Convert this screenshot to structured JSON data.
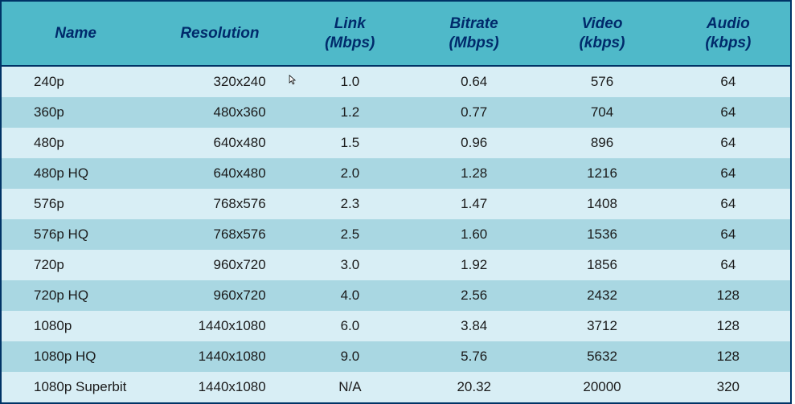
{
  "table": {
    "type": "table",
    "border_color": "#003366",
    "header_bg": "#4fb9c9",
    "header_text_color": "#002a6b",
    "row_bg_even": "#d8eef5",
    "row_bg_odd": "#a9d7e2",
    "body_text_color": "#1a1a1a",
    "header_fontsize": 19,
    "body_fontsize": 17,
    "columns": [
      {
        "label": "Name",
        "width": 185,
        "align": "left"
      },
      {
        "label": "Resolution",
        "width": 175,
        "align": "right"
      },
      {
        "label": "Link\n(Mbps)",
        "width": 150,
        "align": "center"
      },
      {
        "label": "Bitrate\n(Mbps)",
        "width": 160,
        "align": "center"
      },
      {
        "label": "Video\n(kbps)",
        "width": 160,
        "align": "center"
      },
      {
        "label": "Audio\n(kbps)",
        "width": 155,
        "align": "center"
      }
    ],
    "rows": [
      [
        "240p",
        "320x240",
        "1.0",
        "0.64",
        "576",
        "64"
      ],
      [
        "360p",
        "480x360",
        "1.2",
        "0.77",
        "704",
        "64"
      ],
      [
        "480p",
        "640x480",
        "1.5",
        "0.96",
        "896",
        "64"
      ],
      [
        "480p HQ",
        "640x480",
        "2.0",
        "1.28",
        "1216",
        "64"
      ],
      [
        "576p",
        "768x576",
        "2.3",
        "1.47",
        "1408",
        "64"
      ],
      [
        "576p HQ",
        "768x576",
        "2.5",
        "1.60",
        "1536",
        "64"
      ],
      [
        "720p",
        "960x720",
        "3.0",
        "1.92",
        "1856",
        "64"
      ],
      [
        "720p HQ",
        "960x720",
        "4.0",
        "2.56",
        "2432",
        "128"
      ],
      [
        "1080p",
        "1440x1080",
        "6.0",
        "3.84",
        "3712",
        "128"
      ],
      [
        "1080p HQ",
        "1440x1080",
        "9.0",
        "5.76",
        "5632",
        "128"
      ],
      [
        "1080p Superbit",
        "1440x1080",
        "N/A",
        "20.32",
        "20000",
        "320"
      ]
    ]
  }
}
